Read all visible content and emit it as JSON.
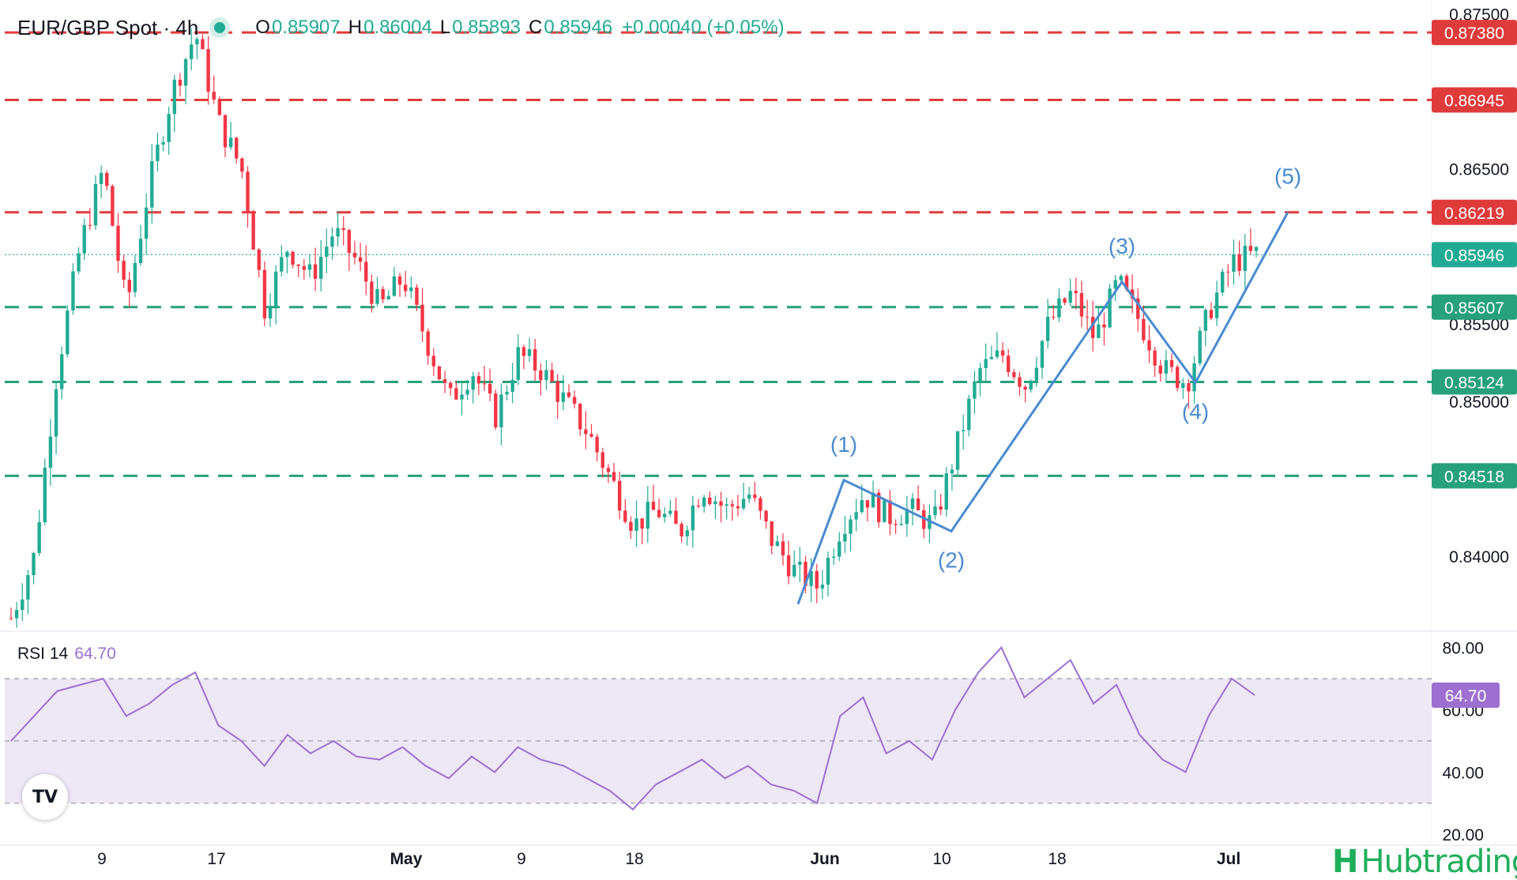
{
  "header": {
    "symbol": "EUR/GBP Spot · 4h",
    "o_label": "O",
    "o_value": "0.85907",
    "h_label": "H",
    "h_value": "0.86004",
    "l_label": "L",
    "l_value": "0.85893",
    "c_label": "C",
    "c_value": "0.85946",
    "change": "+0.00040 (+0.05%)"
  },
  "rsi_header": {
    "label": "RSI 14",
    "value": "64.70"
  },
  "brand": {
    "name": "Hubtrading",
    "mark": "H"
  },
  "tv_logo": {
    "icon": "tradingview-logo-icon",
    "text": "TV"
  },
  "colors": {
    "up": "#22ab94",
    "down": "#f23645",
    "resistance": "#e03b3b",
    "support": "#26a17b",
    "wave": "#4a8bd0",
    "rsi": "#9c6fd0",
    "rsi_band": "#ede7f6"
  },
  "chart_data": {
    "type": "candlestick",
    "price_axis": {
      "ticks": [
        "0.84000",
        "0.85000",
        "0.85500",
        "0.86500",
        "0.87500"
      ],
      "range": [
        0.8352,
        0.8759
      ]
    },
    "time_axis": {
      "ticks": [
        "9",
        "17",
        "May",
        "9",
        "18",
        "Jun",
        "10",
        "18",
        "Jul"
      ]
    },
    "current_price": "0.85946",
    "resistance_levels": [
      "0.87380",
      "0.86945",
      "0.86219"
    ],
    "support_levels": [
      "0.85607",
      "0.85124",
      "0.84518"
    ],
    "elliott_waves": [
      {
        "label": "(1)",
        "price": 0.8449
      },
      {
        "label": "(2)",
        "price": 0.8416
      },
      {
        "label": "(3)",
        "price": 0.8577
      },
      {
        "label": "(4)",
        "price": 0.8512
      },
      {
        "label": "(5)",
        "price": 0.8622
      }
    ],
    "price_path": [
      0.836,
      0.84,
      0.852,
      0.86,
      0.865,
      0.856,
      0.864,
      0.87,
      0.8738,
      0.868,
      0.865,
      0.856,
      0.86,
      0.858,
      0.861,
      0.859,
      0.856,
      0.858,
      0.854,
      0.85,
      0.852,
      0.849,
      0.853,
      0.852,
      0.85,
      0.848,
      0.845,
      0.842,
      0.843,
      0.8415,
      0.8445,
      0.843,
      0.844,
      0.841,
      0.839,
      0.838,
      0.842,
      0.844,
      0.8425,
      0.843,
      0.842,
      0.847,
      0.852,
      0.853,
      0.851,
      0.855,
      0.857,
      0.854,
      0.8577,
      0.855,
      0.852,
      0.8512,
      0.856,
      0.859,
      0.8595
    ],
    "rsi": {
      "period": 14,
      "value": 64.7,
      "axis_ticks": [
        "20.00",
        "40.00",
        "60.00",
        "80.00"
      ],
      "range": [
        16.5,
        85
      ],
      "bands": [
        30,
        50,
        70
      ],
      "values": [
        50,
        58,
        66,
        68,
        70,
        58,
        62,
        68,
        72,
        55,
        50,
        42,
        52,
        46,
        50,
        45,
        44,
        48,
        42,
        38,
        45,
        40,
        48,
        44,
        42,
        38,
        34,
        28,
        36,
        40,
        44,
        38,
        42,
        36,
        34,
        30,
        58,
        64,
        46,
        50,
        44,
        60,
        72,
        80,
        64,
        70,
        76,
        62,
        68,
        52,
        44,
        40,
        58,
        70,
        64.7
      ]
    }
  }
}
